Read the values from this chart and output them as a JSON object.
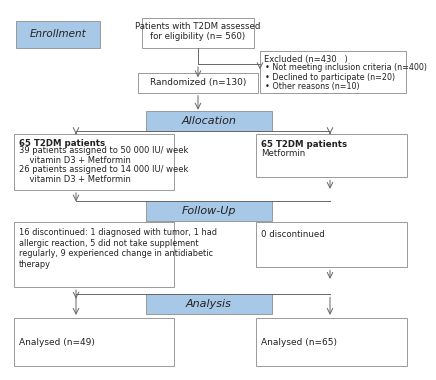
{
  "bg_color": "#ffffff",
  "box_edge_color": "#999999",
  "blue_fill": "#a8c8e8",
  "white_fill": "#ffffff",
  "enrollment_label": "Enrollment",
  "assess_text": "Patients with T2DM assessed\nfor eligibility (n= 560)",
  "excluded_title": "Excluded (n=430   )",
  "excluded_bullets": [
    "• Not meeting inclusion criteria (n=400)",
    "• Declined to participate (n=20)",
    "• Other reasons (n=10)"
  ],
  "randomized_text": "Randomized (n=130)",
  "allocation_label": "Allocation",
  "left_alloc_lines": [
    "65 T2DM patients",
    "39 patients assigned to 50 000 IU/ week",
    "    vitamin D3 + Metformin",
    "26 patients assigned to 14 000 IU/ week",
    "    vitamin D3 + Metformin"
  ],
  "right_alloc_lines": [
    "65 T2DM patients",
    "Metformin"
  ],
  "followup_label": "Follow-Up",
  "left_followup_lines": [
    "16 discontinued: 1 diagnosed with tumor, 1 had",
    "allergic reaction, 5 did not take supplement",
    "regularly, 9 experienced change in antidiabetic",
    "therapy"
  ],
  "right_followup_text": "0 discontinued",
  "analysis_label": "Analysis",
  "left_analysis_text": "Analysed (n=49)",
  "right_analysis_text": "Analysed (n=65)"
}
